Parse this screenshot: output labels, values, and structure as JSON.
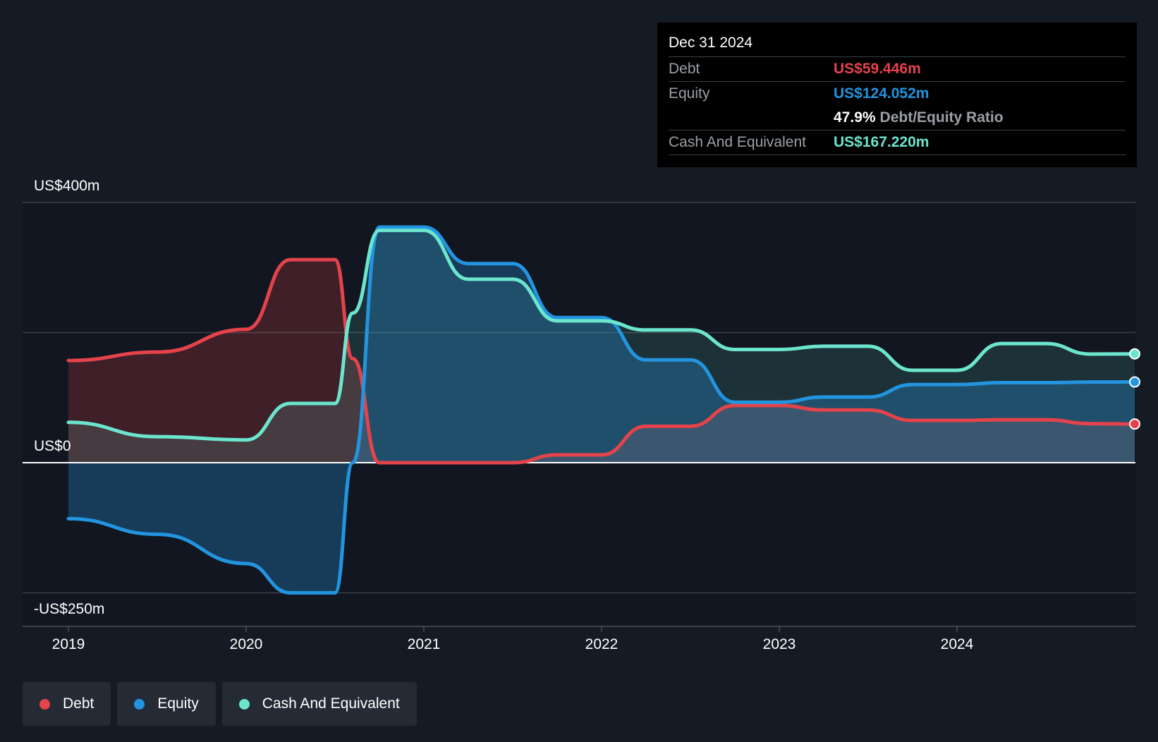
{
  "tooltip": {
    "date": "Dec 31 2024",
    "debt_label": "Debt",
    "debt_value": "US$59.446m",
    "equity_label": "Equity",
    "equity_value": "US$124.052m",
    "ratio_value": "47.9%",
    "ratio_label": "Debt/Equity Ratio",
    "cash_label": "Cash And Equivalent",
    "cash_value": "US$167.220m"
  },
  "legend": [
    {
      "label": "Debt",
      "color": "#e5434b"
    },
    {
      "label": "Equity",
      "color": "#2394df"
    },
    {
      "label": "Cash And Equivalent",
      "color": "#6ce5cf"
    }
  ],
  "chart_data": {
    "type": "area",
    "y_tick_labels": [
      "US$400m",
      "US$0",
      "-US$250m"
    ],
    "y_ticks": [
      400,
      200,
      0,
      -200
    ],
    "ylim": [
      -250,
      400
    ],
    "xlim": [
      2019.0,
      2025.0
    ],
    "x_tick_labels": [
      "2019",
      "2020",
      "2021",
      "2022",
      "2023",
      "2024"
    ],
    "x_ticks": [
      2019,
      2020,
      2021,
      2022,
      2023,
      2024
    ],
    "grid": true,
    "legend_position": "bottom-left",
    "series": [
      {
        "name": "Debt",
        "color": "#e5434b",
        "points": [
          [
            2019.0,
            157
          ],
          [
            2019.5,
            170
          ],
          [
            2020.0,
            205
          ],
          [
            2020.25,
            312
          ],
          [
            2020.5,
            312
          ],
          [
            2020.6,
            160
          ],
          [
            2020.75,
            0
          ],
          [
            2021.0,
            0
          ],
          [
            2021.5,
            0
          ],
          [
            2021.75,
            12
          ],
          [
            2022.0,
            12
          ],
          [
            2022.25,
            56
          ],
          [
            2022.5,
            56
          ],
          [
            2022.75,
            88
          ],
          [
            2023.0,
            88
          ],
          [
            2023.25,
            81
          ],
          [
            2023.5,
            81
          ],
          [
            2023.75,
            65
          ],
          [
            2024.0,
            65
          ],
          [
            2024.25,
            66
          ],
          [
            2024.5,
            66
          ],
          [
            2024.75,
            60
          ],
          [
            2025.0,
            59.446
          ]
        ]
      },
      {
        "name": "Equity",
        "color": "#2394df",
        "points": [
          [
            2019.0,
            -86
          ],
          [
            2019.5,
            -110
          ],
          [
            2020.0,
            -155
          ],
          [
            2020.25,
            -200
          ],
          [
            2020.5,
            -200
          ],
          [
            2020.6,
            0
          ],
          [
            2020.75,
            362
          ],
          [
            2021.0,
            362
          ],
          [
            2021.25,
            306
          ],
          [
            2021.5,
            306
          ],
          [
            2021.75,
            223
          ],
          [
            2022.0,
            223
          ],
          [
            2022.25,
            158
          ],
          [
            2022.5,
            158
          ],
          [
            2022.75,
            93
          ],
          [
            2023.0,
            93
          ],
          [
            2023.25,
            101
          ],
          [
            2023.5,
            101
          ],
          [
            2023.75,
            120
          ],
          [
            2024.0,
            120
          ],
          [
            2024.25,
            123
          ],
          [
            2024.5,
            123
          ],
          [
            2024.75,
            124
          ],
          [
            2025.0,
            124.052
          ]
        ]
      },
      {
        "name": "Cash And Equivalent",
        "color": "#6ce5cf",
        "points": [
          [
            2019.0,
            62
          ],
          [
            2019.5,
            40
          ],
          [
            2020.0,
            35
          ],
          [
            2020.25,
            91
          ],
          [
            2020.5,
            91
          ],
          [
            2020.6,
            230
          ],
          [
            2020.75,
            357
          ],
          [
            2021.0,
            357
          ],
          [
            2021.25,
            282
          ],
          [
            2021.5,
            282
          ],
          [
            2021.75,
            218
          ],
          [
            2022.0,
            218
          ],
          [
            2022.25,
            204
          ],
          [
            2022.5,
            204
          ],
          [
            2022.75,
            174
          ],
          [
            2023.0,
            174
          ],
          [
            2023.25,
            179
          ],
          [
            2023.5,
            179
          ],
          [
            2023.75,
            142
          ],
          [
            2024.0,
            142
          ],
          [
            2024.25,
            183
          ],
          [
            2024.5,
            183
          ],
          [
            2024.75,
            167
          ],
          [
            2025.0,
            167.22
          ]
        ]
      }
    ]
  }
}
